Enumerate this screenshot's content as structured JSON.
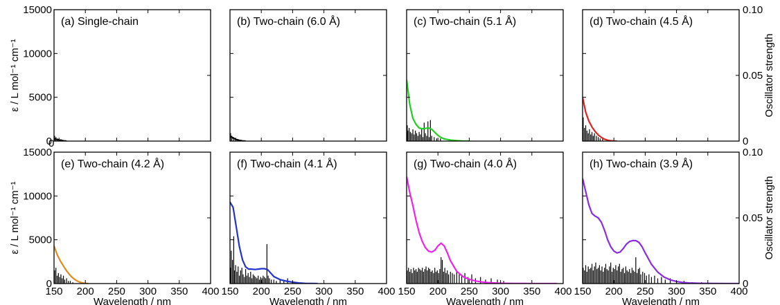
{
  "chart_data": {
    "type": "line",
    "xlabel": "Wavelength / nm",
    "ylabel_left": "ε / L mol⁻¹ cm⁻¹",
    "ylabel_right": "Oscillator strength",
    "xlim": [
      150,
      400
    ],
    "x_ticks": [
      "150",
      "200",
      "250",
      "300",
      "350",
      "400"
    ],
    "ylim_left": [
      0,
      15000
    ],
    "y_ticks_left": [
      "0",
      "5000",
      "10000",
      "15000"
    ],
    "ylim_right": [
      0,
      0.1
    ],
    "y_ticks_right": [
      "0",
      "0.05",
      "0.10"
    ],
    "extra_zero_label": "0",
    "panels": [
      {
        "title": "(a) Single-chain",
        "color": "#000000",
        "spectrum": {
          "x": [
            150,
            155,
            160,
            165,
            170
          ],
          "y": [
            250,
            180,
            90,
            30,
            0
          ]
        },
        "sticks": {
          "x": [
            151,
            153,
            155,
            158,
            161,
            164
          ],
          "f": [
            0.004,
            0.003,
            0.002,
            0.0025,
            0.0015,
            0.001
          ]
        }
      },
      {
        "title": "(b) Two-chain (6.0 Å)",
        "color": "#000000",
        "spectrum": {
          "x": [
            150,
            155,
            160,
            165,
            170,
            175
          ],
          "y": [
            600,
            350,
            180,
            80,
            20,
            0
          ]
        },
        "sticks": {
          "x": [
            151,
            153,
            156,
            159,
            163,
            167
          ],
          "f": [
            0.006,
            0.004,
            0.003,
            0.0025,
            0.0015,
            0.001
          ]
        }
      },
      {
        "title": "(c) Two-chain (5.1 Å)",
        "color": "#22cc22",
        "spectrum": {
          "x": [
            150,
            155,
            160,
            165,
            170,
            175,
            180,
            185,
            190,
            195,
            200,
            205,
            210,
            220,
            230,
            240,
            250
          ],
          "y": [
            7000,
            4200,
            2600,
            1900,
            1500,
            1400,
            1450,
            1500,
            1350,
            1000,
            650,
            400,
            250,
            120,
            50,
            15,
            0
          ]
        },
        "sticks": {
          "x": [
            151,
            152,
            154,
            156,
            158,
            160,
            162,
            164,
            166,
            168,
            170,
            172,
            174,
            176,
            178,
            180,
            182,
            184,
            186,
            188,
            190,
            194,
            198,
            204
          ],
          "f": [
            0.012,
            0.008,
            0.01,
            0.007,
            0.006,
            0.009,
            0.005,
            0.008,
            0.006,
            0.004,
            0.007,
            0.005,
            0.01,
            0.003,
            0.014,
            0.006,
            0.004,
            0.015,
            0.003,
            0.016,
            0.004,
            0.003,
            0.002,
            0.002
          ]
        }
      },
      {
        "title": "(d) Two-chain (4.5 Å)",
        "color": "#dd2222",
        "spectrum": {
          "x": [
            150,
            155,
            160,
            165,
            170,
            175,
            180,
            185,
            190,
            195,
            200,
            205
          ],
          "y": [
            5000,
            3300,
            2300,
            1600,
            1100,
            700,
            420,
            220,
            100,
            40,
            10,
            0
          ]
        },
        "sticks": {
          "x": [
            151,
            153,
            155,
            157,
            159,
            161,
            163,
            165,
            167,
            169,
            172,
            175,
            178,
            182
          ],
          "f": [
            0.018,
            0.01,
            0.012,
            0.008,
            0.006,
            0.009,
            0.005,
            0.007,
            0.004,
            0.006,
            0.004,
            0.003,
            0.002,
            0.002
          ]
        }
      },
      {
        "title": "(e) Two-chain (4.2 Å)",
        "color": "#e08a1e",
        "spectrum": {
          "x": [
            150,
            155,
            160,
            165,
            170,
            175,
            180,
            185,
            190,
            195,
            200,
            205
          ],
          "y": [
            4300,
            3300,
            2600,
            2000,
            1450,
            1000,
            640,
            380,
            190,
            80,
            20,
            0
          ]
        },
        "sticks": {
          "x": [
            151,
            153,
            155,
            157,
            159,
            161,
            163,
            165,
            167,
            170,
            173,
            176,
            180
          ],
          "f": [
            0.01,
            0.012,
            0.006,
            0.008,
            0.005,
            0.007,
            0.004,
            0.006,
            0.003,
            0.004,
            0.002,
            0.002,
            0.001
          ]
        }
      },
      {
        "title": "(f) Two-chain (4.1 Å)",
        "color": "#2233cc",
        "spectrum": {
          "x": [
            150,
            155,
            160,
            165,
            170,
            175,
            180,
            185,
            190,
            195,
            200,
            205,
            210,
            215,
            220,
            230,
            240,
            250,
            260,
            270,
            280,
            290
          ],
          "y": [
            9300,
            8700,
            6500,
            4200,
            2700,
            1900,
            1650,
            1650,
            1600,
            1650,
            1700,
            1700,
            1600,
            1200,
            800,
            450,
            280,
            160,
            70,
            25,
            8,
            0
          ]
        },
        "sticks": {
          "x": [
            151,
            152,
            154,
            156,
            157,
            159,
            161,
            163,
            165,
            167,
            169,
            171,
            173,
            175,
            177,
            179,
            181,
            183,
            185,
            187,
            189,
            191,
            193,
            195,
            197,
            199,
            201,
            203,
            205,
            207,
            209,
            211,
            213,
            216,
            220,
            224,
            230,
            236,
            242,
            250
          ],
          "f": [
            0.012,
            0.025,
            0.018,
            0.036,
            0.01,
            0.014,
            0.009,
            0.013,
            0.006,
            0.01,
            0.012,
            0.007,
            0.005,
            0.011,
            0.006,
            0.008,
            0.005,
            0.009,
            0.004,
            0.007,
            0.006,
            0.005,
            0.004,
            0.006,
            0.003,
            0.005,
            0.004,
            0.006,
            0.005,
            0.004,
            0.03,
            0.006,
            0.004,
            0.003,
            0.003,
            0.002,
            0.003,
            0.002,
            0.004,
            0.001
          ]
        }
      },
      {
        "title": "(g) Two-chain (4.0 Å)",
        "color": "#ee22ee",
        "spectrum": {
          "x": [
            150,
            155,
            160,
            165,
            170,
            175,
            180,
            185,
            190,
            195,
            200,
            205,
            210,
            215,
            220,
            230,
            240,
            250,
            260,
            270,
            280,
            290,
            300,
            310,
            320,
            340,
            360,
            380,
            390
          ],
          "y": [
            12200,
            10400,
            8900,
            7200,
            5800,
            4800,
            4100,
            3700,
            3600,
            3800,
            4300,
            4600,
            4300,
            3500,
            2600,
            1400,
            800,
            480,
            300,
            180,
            110,
            70,
            40,
            20,
            10,
            5,
            2,
            0,
            0
          ]
        },
        "sticks": {
          "x": [
            151,
            153,
            155,
            157,
            159,
            161,
            163,
            165,
            167,
            169,
            171,
            173,
            175,
            177,
            179,
            181,
            183,
            185,
            187,
            189,
            191,
            193,
            195,
            197,
            199,
            201,
            203,
            205,
            207,
            209,
            211,
            213,
            215,
            217,
            220,
            223,
            226,
            230,
            234,
            238,
            243,
            248,
            254,
            260,
            268,
            276,
            285,
            295,
            305
          ],
          "f": [
            0.01,
            0.012,
            0.009,
            0.011,
            0.008,
            0.012,
            0.01,
            0.011,
            0.009,
            0.012,
            0.011,
            0.01,
            0.012,
            0.009,
            0.011,
            0.013,
            0.01,
            0.012,
            0.011,
            0.009,
            0.01,
            0.008,
            0.012,
            0.009,
            0.01,
            0.008,
            0.011,
            0.02,
            0.018,
            0.009,
            0.012,
            0.008,
            0.01,
            0.007,
            0.009,
            0.008,
            0.007,
            0.01,
            0.007,
            0.006,
            0.008,
            0.005,
            0.007,
            0.004,
            0.005,
            0.003,
            0.004,
            0.003,
            0.002
          ]
        }
      },
      {
        "title": "(h) Two-chain (3.9 Å)",
        "color": "#8a2be2",
        "spectrum": {
          "x": [
            150,
            155,
            160,
            165,
            170,
            175,
            180,
            185,
            190,
            195,
            200,
            205,
            210,
            215,
            220,
            225,
            230,
            235,
            240,
            245,
            250,
            260,
            270,
            280,
            290,
            300,
            310,
            320,
            340,
            360,
            380,
            400
          ],
          "y": [
            12000,
            10500,
            9000,
            8000,
            7700,
            7500,
            7000,
            6100,
            5000,
            4200,
            3700,
            3500,
            3600,
            4000,
            4500,
            4800,
            4900,
            4900,
            4700,
            4200,
            3500,
            2200,
            1300,
            750,
            420,
            240,
            130,
            70,
            20,
            8,
            3,
            0
          ]
        },
        "sticks": {
          "x": [
            151,
            153,
            155,
            157,
            159,
            161,
            163,
            165,
            167,
            169,
            171,
            173,
            175,
            177,
            179,
            181,
            183,
            185,
            187,
            189,
            191,
            193,
            195,
            197,
            199,
            201,
            203,
            205,
            207,
            209,
            211,
            213,
            215,
            217,
            219,
            221,
            223,
            225,
            227,
            229,
            231,
            233,
            235,
            237,
            239,
            241,
            243,
            246,
            249,
            252,
            256,
            260,
            265,
            270,
            276,
            282,
            290,
            300,
            312,
            325,
            340
          ],
          "f": [
            0.012,
            0.01,
            0.014,
            0.009,
            0.013,
            0.011,
            0.012,
            0.015,
            0.01,
            0.013,
            0.016,
            0.011,
            0.012,
            0.014,
            0.01,
            0.013,
            0.009,
            0.012,
            0.015,
            0.011,
            0.01,
            0.013,
            0.016,
            0.009,
            0.012,
            0.011,
            0.014,
            0.01,
            0.013,
            0.015,
            0.009,
            0.011,
            0.012,
            0.008,
            0.013,
            0.01,
            0.009,
            0.011,
            0.008,
            0.012,
            0.01,
            0.009,
            0.02,
            0.008,
            0.011,
            0.012,
            0.007,
            0.009,
            0.008,
            0.006,
            0.007,
            0.005,
            0.006,
            0.004,
            0.005,
            0.003,
            0.004,
            0.002,
            0.002,
            0.001,
            0.001
          ]
        }
      }
    ]
  }
}
